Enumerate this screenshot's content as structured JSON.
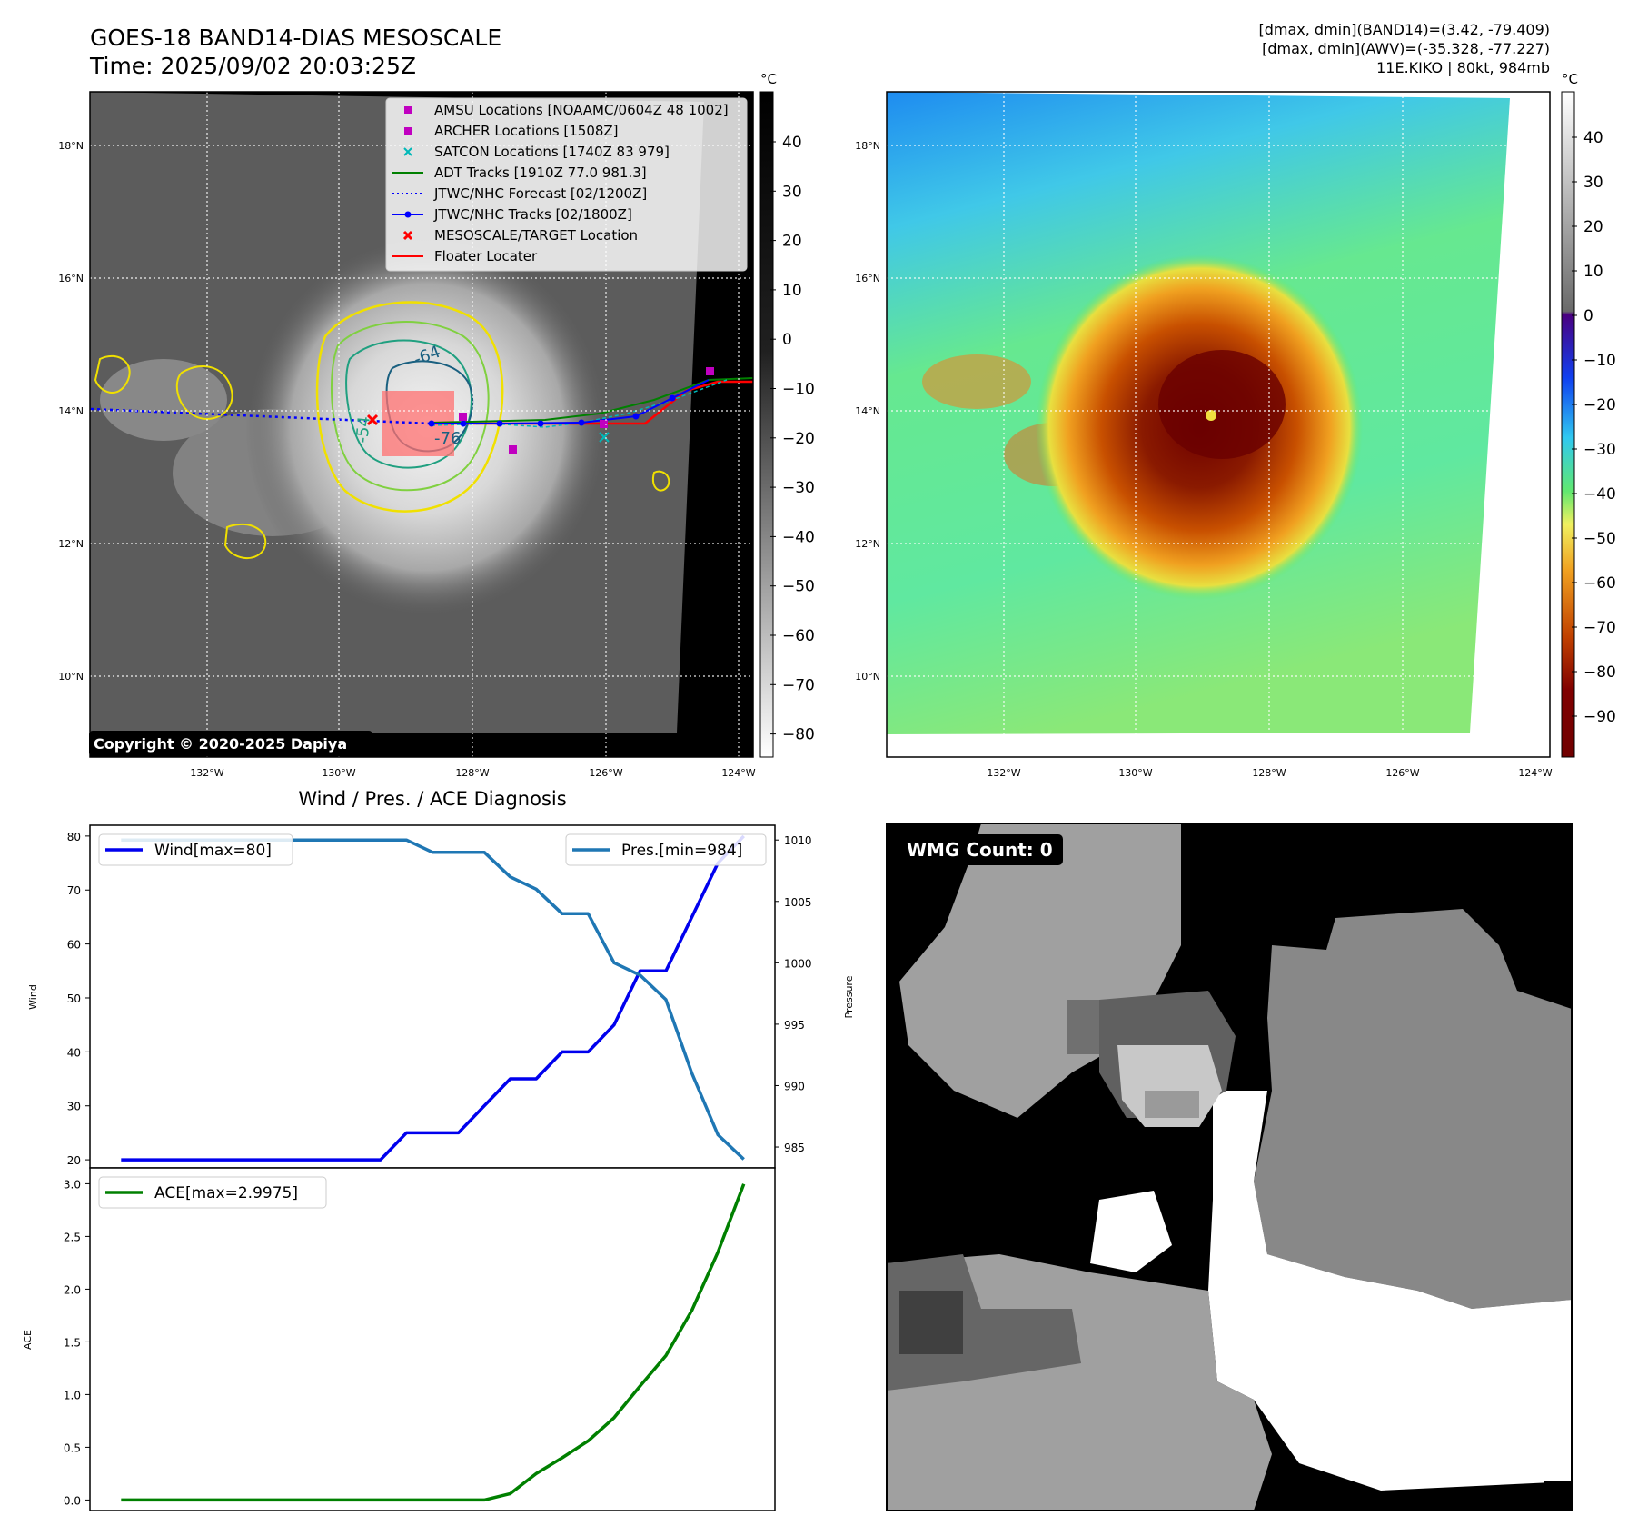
{
  "header": {
    "title_line1": "GOES-18 BAND14-DIAS MESOSCALE",
    "title_line2": "Time: 2025/09/02 20:03:25Z",
    "info_line1": "[dmax, dmin](BAND14)=(3.42, -79.409)",
    "info_line2": "[dmax, dmin](AWV)=(-35.328, -77.227)",
    "info_line3": "11E.KIKO | 80kt, 984mb"
  },
  "ir_map": {
    "lat_labels": [
      "18°N",
      "16°N",
      "14°N",
      "12°N",
      "10°N"
    ],
    "lon_labels": [
      "132°W",
      "130°W",
      "128°W",
      "126°W",
      "124°W"
    ],
    "contour_labels": [
      "-64",
      "-54",
      "-76"
    ],
    "copyright": "Copyright © 2020-2025 Dapiya",
    "legend": [
      {
        "label": "AMSU Locations [NOAAMC/0604Z 48 1002]",
        "symbol": "square",
        "color": "#c000c0"
      },
      {
        "label": "ARCHER Locations [1508Z]",
        "symbol": "square",
        "color": "#c000c0"
      },
      {
        "label": "SATCON Locations [1740Z 83 979]",
        "symbol": "x",
        "color": "#00b8b8"
      },
      {
        "label": "ADT Tracks [1910Z 77.0 981.3]",
        "symbol": "line",
        "color": "#008000"
      },
      {
        "label": "JTWC/NHC Forecast [02/1200Z]",
        "symbol": "dotted",
        "color": "#0000ff"
      },
      {
        "label": "JTWC/NHC Tracks [02/1800Z]",
        "symbol": "line-dot",
        "color": "#0000ff"
      },
      {
        "label": "MESOSCALE/TARGET Location",
        "symbol": "x",
        "color": "#ff0000"
      },
      {
        "label": "Floater Locater",
        "symbol": "line",
        "color": "#ff0000"
      }
    ]
  },
  "ir_colorbar": {
    "unit": "°C",
    "ticks": [
      "40",
      "30",
      "20",
      "10",
      "0",
      "−10",
      "−20",
      "−30",
      "−40",
      "−50",
      "−60",
      "−70",
      "−80"
    ]
  },
  "wv_map": {
    "lat_labels": [
      "18°N",
      "16°N",
      "14°N",
      "12°N",
      "10°N"
    ],
    "lon_labels": [
      "132°W",
      "130°W",
      "128°W",
      "126°W",
      "124°W"
    ]
  },
  "wv_colorbar": {
    "unit": "°C",
    "ticks": [
      "40",
      "30",
      "20",
      "10",
      "0",
      "−10",
      "−20",
      "−30",
      "−40",
      "−50",
      "−60",
      "−70",
      "−80",
      "−90"
    ]
  },
  "wmg": {
    "label": "WMG Count: 0"
  },
  "chart_data": [
    {
      "type": "line",
      "title": "Wind / Pres. / ACE Diagnosis",
      "ylabel": "Wind",
      "y2label": "Pressure",
      "ylim": [
        18.5,
        82
      ],
      "y2lim": [
        983.3,
        1011.2
      ],
      "xlim": [
        -1.2,
        25.2
      ],
      "x": [
        0,
        1,
        2,
        3,
        4,
        5,
        6,
        7,
        8,
        9,
        10,
        11,
        12,
        13,
        14,
        15,
        16,
        17,
        18,
        19,
        20,
        21,
        22,
        23,
        24
      ],
      "yticks": [
        20,
        30,
        40,
        50,
        60,
        70,
        80
      ],
      "y2ticks": [
        985,
        990,
        995,
        1000,
        1005,
        1010
      ],
      "series": [
        {
          "name": "Wind[max=80]",
          "axis": "left",
          "color": "#0000ee",
          "values": [
            20,
            20,
            20,
            20,
            20,
            20,
            20,
            20,
            20,
            20,
            20,
            25,
            25,
            25,
            30,
            35,
            35,
            40,
            40,
            45,
            55,
            55,
            65,
            75,
            80
          ]
        },
        {
          "name": "Pres.[min=984]",
          "axis": "right",
          "color": "#1f77b4",
          "values": [
            1010,
            1010,
            1010,
            1010,
            1010,
            1010,
            1010,
            1010,
            1010,
            1010,
            1010,
            1010,
            1009,
            1009,
            1009,
            1007,
            1006,
            1004,
            1004,
            1000,
            999,
            997,
            991,
            986,
            984
          ]
        }
      ]
    },
    {
      "type": "line",
      "ylabel": "ACE",
      "ylim": [
        -0.1,
        3.15
      ],
      "xlim": [
        -1.2,
        25.2
      ],
      "x": [
        0,
        1,
        2,
        3,
        4,
        5,
        6,
        7,
        8,
        9,
        10,
        11,
        12,
        13,
        14,
        15,
        16,
        17,
        18,
        19,
        20,
        21,
        22,
        23,
        24
      ],
      "yticks": [
        0.0,
        0.5,
        1.0,
        1.5,
        2.0,
        2.5,
        3.0
      ],
      "series": [
        {
          "name": "ACE[max=2.9975]",
          "color": "#008000",
          "values": [
            0,
            0,
            0,
            0,
            0,
            0,
            0,
            0,
            0,
            0,
            0,
            0,
            0,
            0,
            0,
            0.06,
            0.25,
            0.4,
            0.56,
            0.78,
            1.08,
            1.37,
            1.8,
            2.35,
            2.9975
          ]
        }
      ]
    }
  ]
}
